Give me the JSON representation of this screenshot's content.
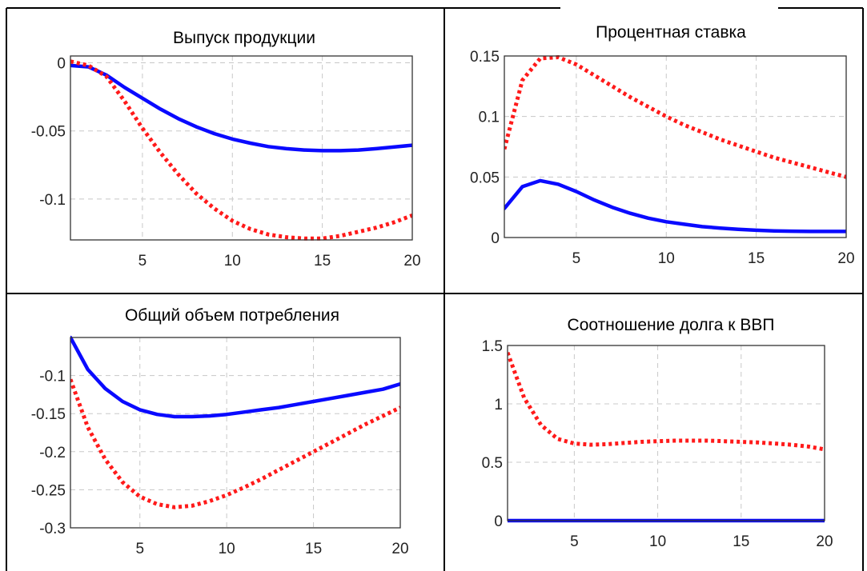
{
  "colors": {
    "solid_series": "#0a0aff",
    "dotted_series": "#ff1a1a",
    "grid": "#c8c8c8",
    "frame": "#000000"
  },
  "chart_data": [
    {
      "type": "line",
      "title": "Выпуск продукции",
      "xlim": [
        1,
        20
      ],
      "ylim": [
        -0.13,
        0.005
      ],
      "x_ticks": [
        5,
        10,
        15,
        20
      ],
      "x_tick_labels": [
        "5",
        "10",
        "15",
        "20"
      ],
      "y_ticks": [
        0,
        -0.05,
        -0.1
      ],
      "y_tick_labels": [
        "0",
        "-0.05",
        "-0.1"
      ],
      "grid": true,
      "x": [
        1,
        2,
        3,
        4,
        5,
        6,
        7,
        8,
        9,
        10,
        11,
        12,
        13,
        14,
        15,
        16,
        17,
        18,
        19,
        20
      ],
      "series": [
        {
          "style": "solid",
          "color": "#0a0aff",
          "values": [
            -0.002,
            -0.003,
            -0.009,
            -0.018,
            -0.026,
            -0.034,
            -0.041,
            -0.047,
            -0.052,
            -0.056,
            -0.059,
            -0.0615,
            -0.063,
            -0.064,
            -0.0645,
            -0.0645,
            -0.064,
            -0.063,
            -0.0618,
            -0.0605
          ]
        },
        {
          "style": "dotted",
          "color": "#ff1a1a",
          "values": [
            0.001,
            -0.002,
            -0.01,
            -0.028,
            -0.048,
            -0.066,
            -0.082,
            -0.096,
            -0.107,
            -0.116,
            -0.122,
            -0.126,
            -0.128,
            -0.129,
            -0.129,
            -0.127,
            -0.124,
            -0.121,
            -0.117,
            -0.112
          ]
        }
      ]
    },
    {
      "type": "line",
      "title": "Процентная ставка",
      "xlim": [
        1,
        20
      ],
      "ylim": [
        0,
        0.15
      ],
      "x_ticks": [
        5,
        10,
        15,
        20
      ],
      "x_tick_labels": [
        "5",
        "10",
        "15",
        "20"
      ],
      "y_ticks": [
        0,
        0.05,
        0.1,
        0.15
      ],
      "y_tick_labels": [
        "0",
        "0.05",
        "0.1",
        "0.15"
      ],
      "grid": true,
      "x": [
        1,
        2,
        3,
        4,
        5,
        6,
        7,
        8,
        9,
        10,
        11,
        12,
        13,
        14,
        15,
        16,
        17,
        18,
        19,
        20
      ],
      "series": [
        {
          "style": "solid",
          "color": "#0a0aff",
          "values": [
            0.024,
            0.042,
            0.047,
            0.044,
            0.038,
            0.031,
            0.025,
            0.02,
            0.016,
            0.013,
            0.011,
            0.009,
            0.0078,
            0.0068,
            0.006,
            0.0055,
            0.0052,
            0.005,
            0.005,
            0.005
          ]
        },
        {
          "style": "dotted",
          "color": "#ff1a1a",
          "values": [
            0.073,
            0.13,
            0.148,
            0.149,
            0.143,
            0.134,
            0.125,
            0.116,
            0.108,
            0.1,
            0.093,
            0.087,
            0.081,
            0.076,
            0.071,
            0.066,
            0.062,
            0.058,
            0.054,
            0.05
          ]
        }
      ]
    },
    {
      "type": "line",
      "title": "Общий объем потребления",
      "xlim": [
        1,
        20
      ],
      "ylim": [
        -0.3,
        -0.05
      ],
      "x_ticks": [
        5,
        10,
        15,
        20
      ],
      "x_tick_labels": [
        "5",
        "10",
        "15",
        "20"
      ],
      "y_ticks": [
        -0.1,
        -0.15,
        -0.2,
        -0.25,
        -0.3
      ],
      "y_tick_labels": [
        "-0.1",
        "-0.15",
        "-0.2",
        "-0.25",
        "-0.3"
      ],
      "grid": true,
      "x": [
        1,
        2,
        3,
        4,
        5,
        6,
        7,
        8,
        9,
        10,
        11,
        12,
        13,
        14,
        15,
        16,
        17,
        18,
        19,
        20
      ],
      "series": [
        {
          "style": "solid",
          "color": "#0a0aff",
          "values": [
            -0.05,
            -0.092,
            -0.117,
            -0.134,
            -0.145,
            -0.151,
            -0.154,
            -0.154,
            -0.153,
            -0.151,
            -0.148,
            -0.145,
            -0.142,
            -0.138,
            -0.134,
            -0.13,
            -0.126,
            -0.122,
            -0.118,
            -0.111
          ]
        },
        {
          "style": "dotted",
          "color": "#ff1a1a",
          "values": [
            -0.105,
            -0.168,
            -0.21,
            -0.24,
            -0.259,
            -0.269,
            -0.273,
            -0.271,
            -0.265,
            -0.257,
            -0.247,
            -0.236,
            -0.224,
            -0.212,
            -0.2,
            -0.188,
            -0.176,
            -0.164,
            -0.153,
            -0.142
          ]
        }
      ]
    },
    {
      "type": "line",
      "title": "Соотношение долга к ВВП",
      "xlim": [
        1,
        20
      ],
      "ylim": [
        0,
        1.5
      ],
      "x_ticks": [
        5,
        10,
        15,
        20
      ],
      "x_tick_labels": [
        "5",
        "10",
        "15",
        "20"
      ],
      "y_ticks": [
        0,
        0.5,
        1,
        1.5
      ],
      "y_tick_labels": [
        "0",
        "0.5",
        "1",
        "1.5"
      ],
      "grid": true,
      "x": [
        1,
        2,
        3,
        4,
        5,
        6,
        7,
        8,
        9,
        10,
        11,
        12,
        13,
        14,
        15,
        16,
        17,
        18,
        19,
        20
      ],
      "series": [
        {
          "style": "solid",
          "color": "#0a0aff",
          "values": [
            0,
            0,
            0,
            0,
            0,
            0,
            0,
            0,
            0,
            0,
            0,
            0,
            0,
            0,
            0,
            0,
            0,
            0,
            0,
            0
          ]
        },
        {
          "style": "dotted",
          "color": "#ff1a1a",
          "values": [
            1.44,
            1.05,
            0.82,
            0.7,
            0.66,
            0.65,
            0.655,
            0.665,
            0.675,
            0.68,
            0.685,
            0.685,
            0.685,
            0.68,
            0.675,
            0.67,
            0.66,
            0.65,
            0.635,
            0.61
          ]
        }
      ]
    }
  ]
}
